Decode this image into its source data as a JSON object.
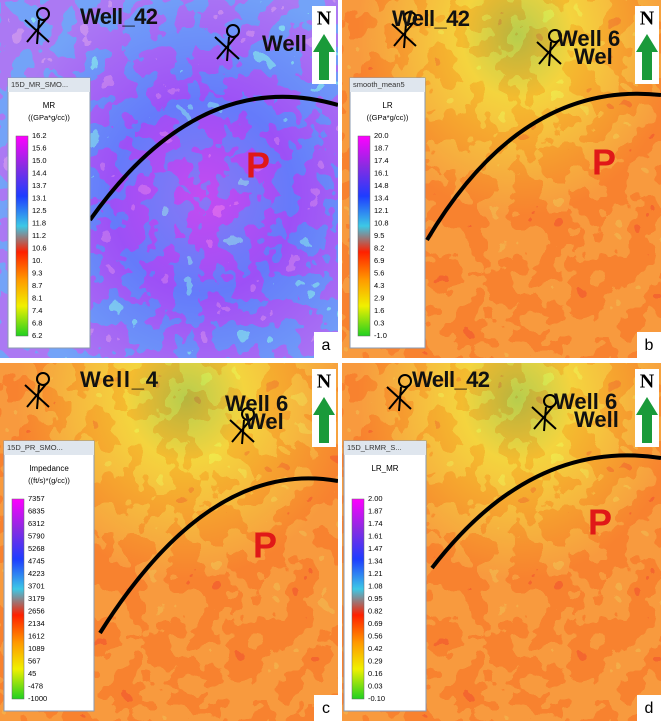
{
  "panels": [
    {
      "letter": "a",
      "marker": "P",
      "north": "N",
      "wells": [
        "Well_42",
        "Well"
      ],
      "legend": {
        "header": "15D_MR_SMO...",
        "title": "MR",
        "unit": "((GPa*g/cc))",
        "labels": [
          "16.2",
          "15.6",
          "15.0",
          "14.4",
          "13.7",
          "13.1",
          "12.5",
          "11.8",
          "11.2",
          "10.6",
          "10.",
          "9.3",
          "8.7",
          "8.1",
          "7.4",
          "6.8",
          "6.2"
        ]
      }
    },
    {
      "letter": "b",
      "marker": "P",
      "north": "N",
      "wells": [
        "Well_42",
        "Well 6",
        "Wel"
      ],
      "legend": {
        "header": "smooth_mean5",
        "title": "LR",
        "unit": "((GPa*g/cc))",
        "labels": [
          "20.0",
          "18.7",
          "17.4",
          "16.1",
          "14.8",
          "13.4",
          "12.1",
          "10.8",
          "9.5",
          "8.2",
          "6.9",
          "5.6",
          "4.3",
          "2.9",
          "1.6",
          "0.3",
          "-1.0"
        ]
      }
    },
    {
      "letter": "c",
      "marker": "P",
      "north": "N",
      "wells": [
        "Well_4",
        "Well 6",
        "Wel"
      ],
      "legend": {
        "header": "15D_PR_SMO...",
        "title": "Impedance",
        "unit": "((ft/s)*(g/cc))",
        "labels": [
          "7357",
          "6835",
          "6312",
          "5790",
          "5268",
          "4745",
          "4223",
          "3701",
          "3179",
          "2656",
          "2134",
          "1612",
          "1089",
          "567",
          "45",
          "-478",
          "-1000"
        ]
      }
    },
    {
      "letter": "d",
      "marker": "P",
      "north": "N",
      "wells": [
        "Well_42",
        "Well 6",
        "Well"
      ],
      "legend": {
        "header": "15D_LRMR_S...",
        "title": "LR_MR",
        "unit": "",
        "labels": [
          "2.00",
          "1.87",
          "1.74",
          "1.61",
          "1.47",
          "1.34",
          "1.21",
          "1.08",
          "0.95",
          "0.82",
          "0.69",
          "0.56",
          "0.42",
          "0.29",
          "0.16",
          "0.03",
          "-0.10"
        ]
      }
    }
  ]
}
